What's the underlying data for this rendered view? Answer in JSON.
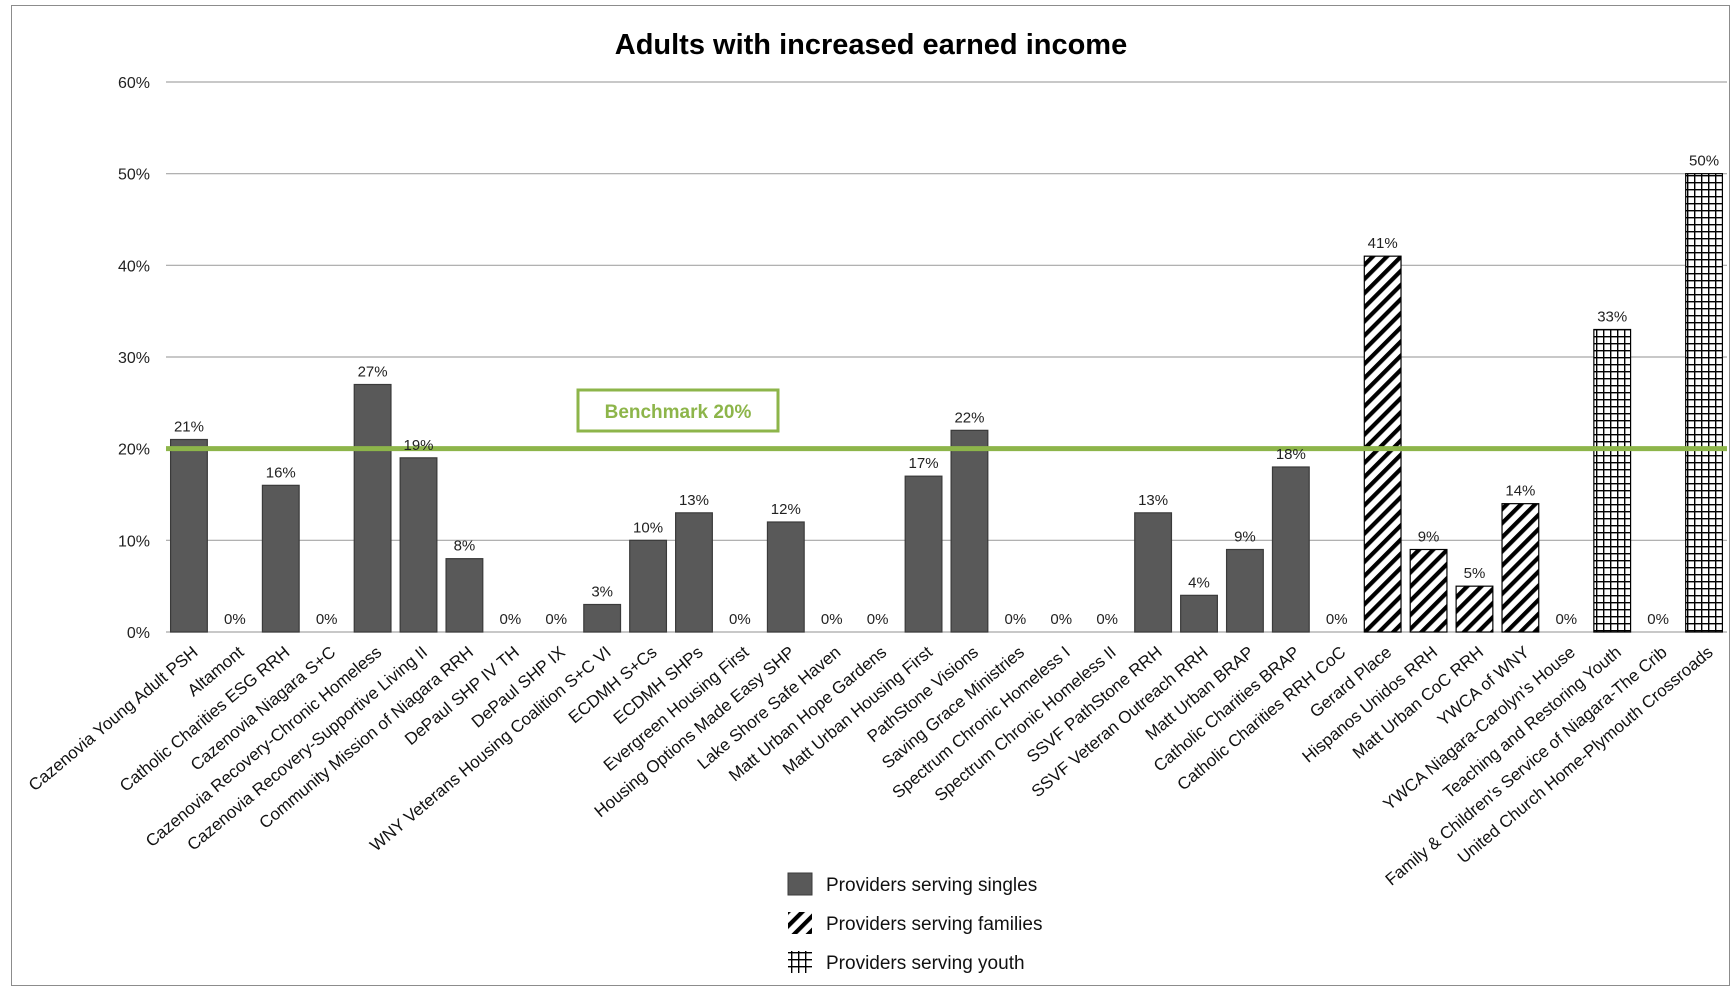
{
  "chart_data": {
    "type": "bar",
    "title": "Adults with increased earned income",
    "xlabel": "",
    "ylabel": "",
    "ylim": [
      0,
      60
    ],
    "yticks": [
      "0%",
      "10%",
      "20%",
      "30%",
      "40%",
      "50%",
      "60%"
    ],
    "grid": true,
    "benchmark": {
      "value": 20,
      "label": "Benchmark 20%",
      "color": "#8db54a"
    },
    "colors": {
      "bar": "#595959",
      "bar_stroke": "#3a3a3a",
      "grid": "#a6a6a6"
    },
    "categories": [
      "Cazenovia Young Adult PSH",
      "Altamont",
      "Catholic Charities ESG RRH",
      "Cazenovia Niagara S+C",
      "Cazenovia Recovery-Chronic Homeless",
      "Cazenovia Recovery-Supportive Living II",
      "Community Mission of Niagara RRH",
      "DePaul SHP IV TH",
      "DePaul SHP IX",
      "WNY Veterans Housing Coalition S+C VI",
      "ECDMH S+Cs",
      "ECDMH SHPs",
      "Evergreen Housing First",
      "Housing Options Made Easy SHP",
      "Lake Shore Safe Haven",
      "Matt Urban Hope Gardens",
      "Matt Urban Housing First",
      "PathStone Visions",
      "Saving Grace Ministries",
      "Spectrum Chronic Homeless I",
      "Spectrum Chronic Homeless II",
      "SSVF PathStone RRH",
      "SSVF Veteran Outreach RRH",
      "Matt Urban BRAP",
      "Catholic Charities BRAP",
      "Catholic Charities RRH CoC",
      "Gerard Place",
      "Hispanos Unidos RRH",
      "Matt Urban CoC RRH",
      "YWCA of WNY",
      "YWCA Niagara-Carolyn's House",
      "Teaching and Restoring Youth",
      "Family & Children's Service of Niagara-The Crib",
      "United Church Home-Plymouth Crossroads"
    ],
    "values": [
      21,
      0,
      16,
      0,
      27,
      19,
      8,
      0,
      0,
      3,
      10,
      13,
      0,
      12,
      0,
      0,
      17,
      22,
      0,
      0,
      0,
      13,
      4,
      9,
      18,
      0,
      41,
      9,
      5,
      14,
      0,
      33,
      0,
      50
    ],
    "value_labels": [
      "21%",
      "0%",
      "16%",
      "0%",
      "27%",
      "19%",
      "8%",
      "0%",
      "0%",
      "3%",
      "10%",
      "13%",
      "0%",
      "12%",
      "0%",
      "0%",
      "17%",
      "22%",
      "0%",
      "0%",
      "0%",
      "13%",
      "4%",
      "9%",
      "18%",
      "0%",
      "41%",
      "9%",
      "5%",
      "14%",
      "0%",
      "33%",
      "0%",
      "50%"
    ],
    "groups": [
      "singles",
      "singles",
      "singles",
      "singles",
      "singles",
      "singles",
      "singles",
      "singles",
      "singles",
      "singles",
      "singles",
      "singles",
      "singles",
      "singles",
      "singles",
      "singles",
      "singles",
      "singles",
      "singles",
      "singles",
      "singles",
      "singles",
      "singles",
      "singles",
      "singles",
      "singles",
      "families",
      "families",
      "families",
      "families",
      "youth",
      "youth",
      "youth",
      "youth"
    ],
    "legend": {
      "position": "bottom-center",
      "entries": [
        {
          "key": "singles",
          "label": "Providers serving singles"
        },
        {
          "key": "families",
          "label": "Providers serving families"
        },
        {
          "key": "youth",
          "label": "Providers serving youth"
        }
      ]
    }
  }
}
